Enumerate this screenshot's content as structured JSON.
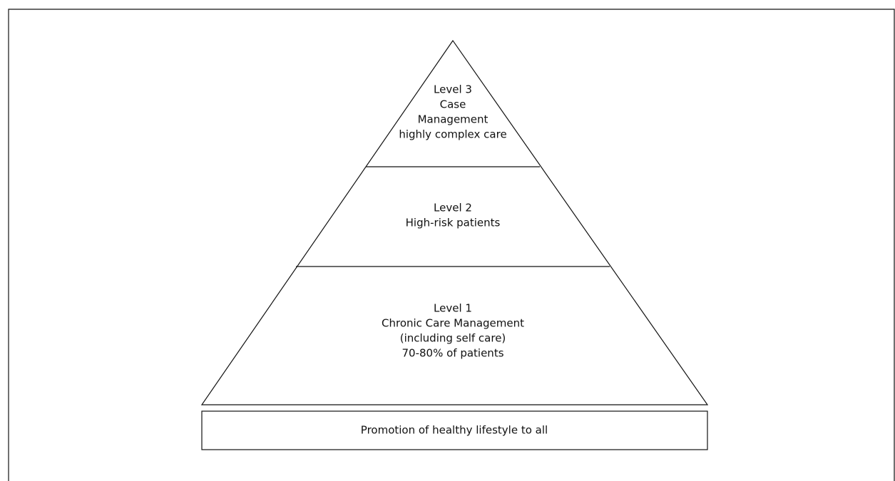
{
  "levels": [
    {
      "lines": [
        "Level 3",
        "Case",
        "Management",
        "highly complex care"
      ]
    },
    {
      "lines": [
        "Level 2",
        "High-risk patients"
      ]
    },
    {
      "lines": [
        "Level 1",
        "Chronic Care Management",
        "(including self care)",
        "70-80% of patients"
      ]
    }
  ],
  "base": {
    "label": "Promotion of healthy lifestyle to all"
  }
}
